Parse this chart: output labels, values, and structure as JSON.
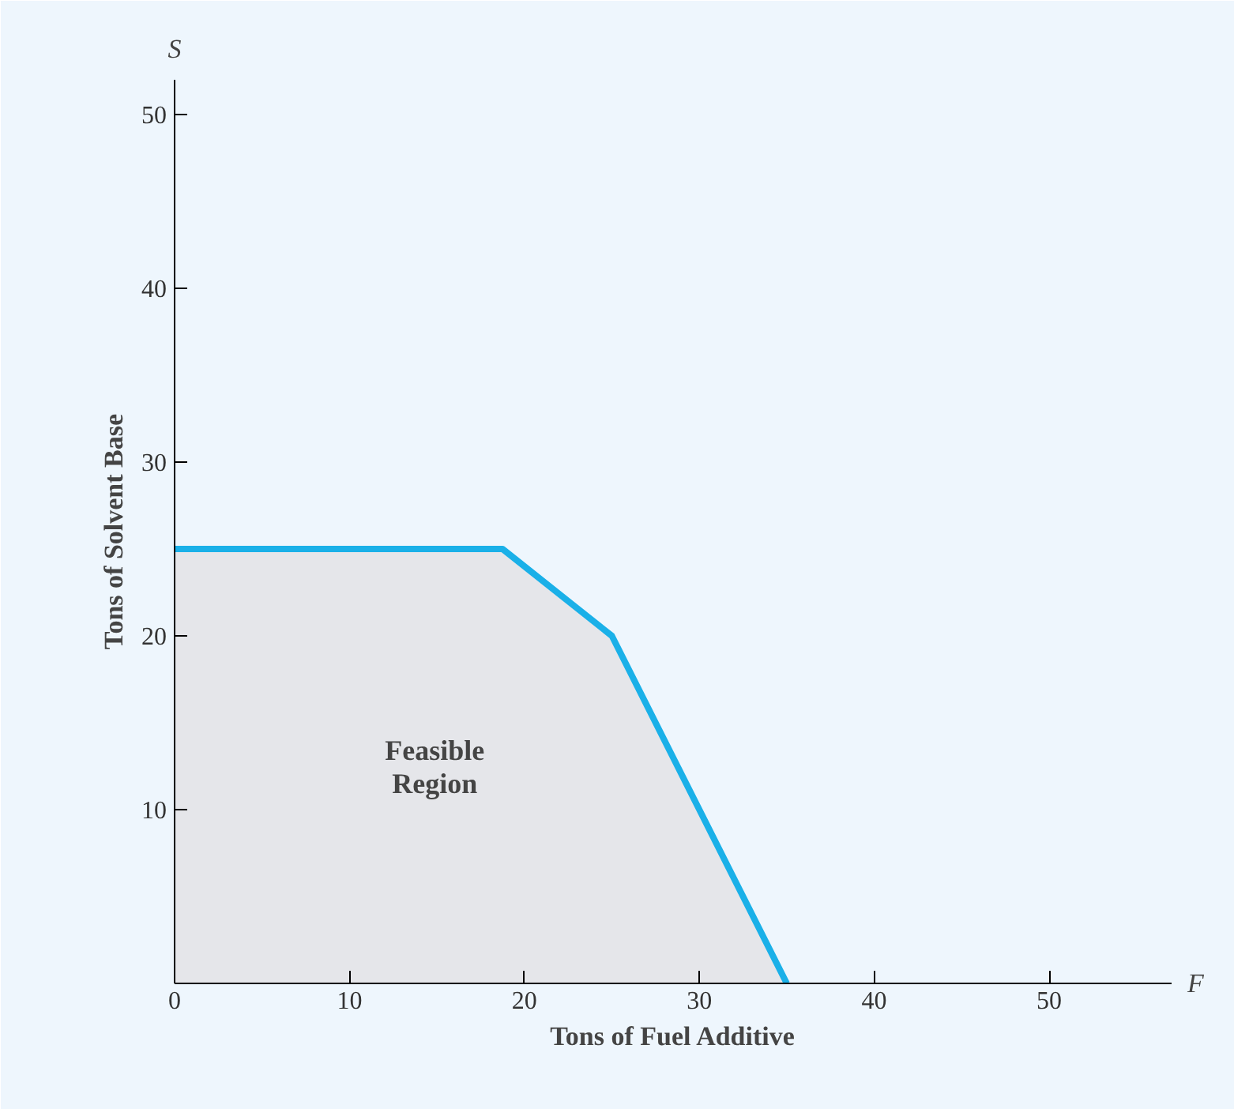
{
  "chart_data": {
    "type": "area",
    "xlabel": "Tons of Fuel Additive",
    "ylabel": "Tons of Solvent Base",
    "x": [
      0,
      18.75,
      25,
      35
    ],
    "series": [
      {
        "color": "#1ab0e8",
        "values": [
          25,
          25,
          20,
          0
        ]
      }
    ],
    "xlim": [
      0,
      57
    ],
    "ylim": [
      0,
      52
    ],
    "xticks": [
      0,
      10,
      20,
      30,
      40,
      50
    ],
    "yticks": [
      10,
      20,
      30,
      40,
      50
    ],
    "annotations": [
      "S",
      "F",
      "Feasible\nRegion"
    ],
    "grid": false
  }
}
